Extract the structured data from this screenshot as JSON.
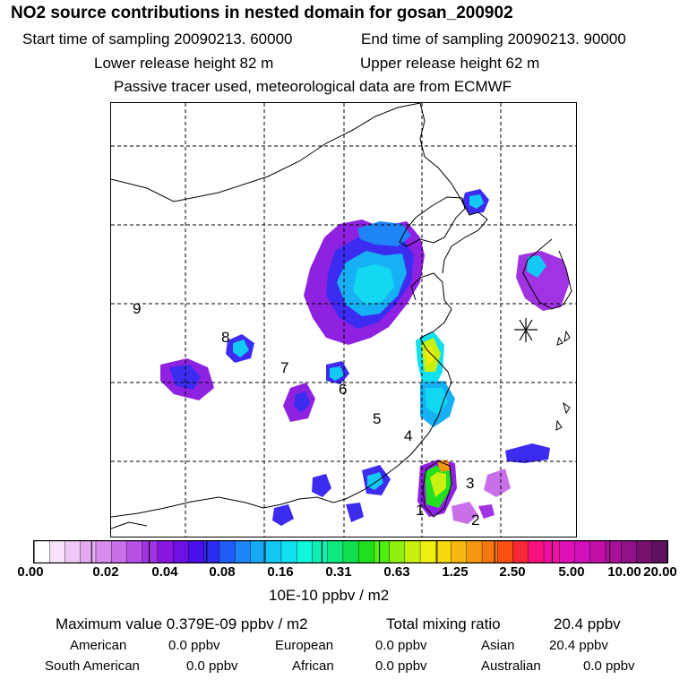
{
  "title": "NO2 source contributions in nested domain for gosan_200902",
  "header": {
    "start_label": "Start time of sampling 20090213. 60000",
    "end_label": "End time of sampling 20090213. 90000",
    "lower_label": "Lower release height   82 m",
    "upper_label": "Upper release height   62 m",
    "note": "Passive tracer used, meteorological data are from ECMWF"
  },
  "map": {
    "region_labels": [
      "1",
      "2",
      "3",
      "4",
      "5",
      "6",
      "7",
      "8",
      "9"
    ],
    "receptor_icon": "asterisk-marker"
  },
  "colorbar": {
    "tick_labels": [
      "0.00",
      "0.02",
      "0.04",
      "0.08",
      "0.16",
      "0.31",
      "0.63",
      "1.25",
      "2.50",
      "5.00",
      "10.00",
      "20.00"
    ],
    "colors": [
      "#ffffff",
      "#f7e4fb",
      "#efc8f6",
      "#e4aaf2",
      "#d88ded",
      "#c96fe9",
      "#b851e6",
      "#a033e2",
      "#8816de",
      "#6e10e4",
      "#4a10ec",
      "#2c2cf2",
      "#1f5cf6",
      "#1f84f6",
      "#19a8f6",
      "#14c8f4",
      "#10e0f0",
      "#10f5dc",
      "#10f0b0",
      "#10e880",
      "#10e050",
      "#20e020",
      "#50f010",
      "#90f010",
      "#c8f010",
      "#f0f010",
      "#f8d810",
      "#f8b810",
      "#f89810",
      "#f87810",
      "#f85010",
      "#f82838",
      "#f8107c",
      "#f010a0",
      "#e010b8",
      "#d010b8",
      "#c010a8",
      "#a8109c",
      "#901088",
      "#781070",
      "#601060"
    ],
    "unit": "10E-10 ppbv / m2"
  },
  "stats": {
    "max_label": "Maximum value  0.379E-09 ppbv / m2",
    "total_label": "Total mixing ratio",
    "total_value": "20.4 ppbv"
  },
  "continents": [
    {
      "name": "American",
      "value": "0.0 ppbv"
    },
    {
      "name": "European",
      "value": "0.0 ppbv"
    },
    {
      "name": "Asian",
      "value": "20.4 ppbv"
    },
    {
      "name": "South American",
      "value": "0.0 ppbv"
    },
    {
      "name": "African",
      "value": "0.0 ppbv"
    },
    {
      "name": "Australian",
      "value": "0.0 ppbv"
    }
  ]
}
